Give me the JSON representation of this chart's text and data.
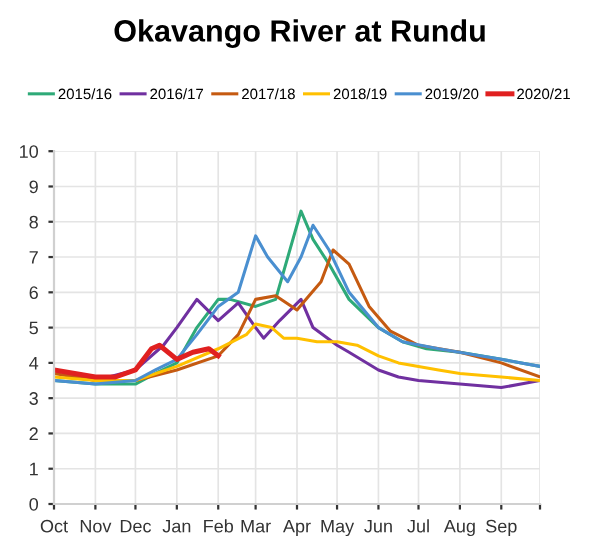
{
  "chart_data": {
    "type": "line",
    "title": "Okavango River at Rundu",
    "xlim": [
      "2020-10-01",
      "2021-09-30"
    ],
    "xticks": [
      {
        "value": "2020-10-01",
        "label": "Oct"
      },
      {
        "value": "2020-11-01",
        "label": "Nov"
      },
      {
        "value": "2020-12-01",
        "label": "Dec"
      },
      {
        "value": "2021-01-01",
        "label": "Jan"
      },
      {
        "value": "2021-02-01",
        "label": "Feb"
      },
      {
        "value": "2021-03-01",
        "label": "Mar"
      },
      {
        "value": "2021-04-01",
        "label": "Apr"
      },
      {
        "value": "2021-05-01",
        "label": "May"
      },
      {
        "value": "2021-06-01",
        "label": "Jun"
      },
      {
        "value": "2021-07-01",
        "label": "Jul"
      },
      {
        "value": "2021-08-01",
        "label": "Aug"
      },
      {
        "value": "2021-09-01",
        "label": "Sep"
      },
      {
        "value": "2021-09-30",
        "label": null
      }
    ],
    "ylim": [
      0,
      10
    ],
    "yticks": [
      0,
      1,
      2,
      3,
      4,
      5,
      6,
      7,
      8,
      9,
      10
    ],
    "grid": true,
    "legend": "top",
    "marker": "none",
    "line_style": "solid",
    "series": [
      {
        "name": "2015/16",
        "color": "#2eaa78",
        "x": [
          "2020-10-01",
          "2020-11-01",
          "2020-12-01",
          "2020-12-16",
          "2021-01-01",
          "2021-01-16",
          "2021-02-01",
          "2021-02-10",
          "2021-03-01",
          "2021-03-16",
          "2021-04-04",
          "2021-04-13",
          "2021-04-25",
          "2021-05-10",
          "2021-06-01",
          "2021-06-19",
          "2021-07-07",
          "2021-08-01",
          "2021-09-01",
          "2021-09-16",
          "2021-09-30"
        ],
        "values": [
          3.5,
          3.4,
          3.4,
          3.7,
          4.0,
          5.0,
          5.8,
          5.8,
          5.6,
          5.8,
          8.3,
          7.5,
          6.8,
          5.8,
          5.0,
          4.6,
          4.4,
          4.3,
          4.1,
          4.0,
          3.9
        ]
      },
      {
        "name": "2016/17",
        "color": "#7030a0",
        "x": [
          "2020-10-01",
          "2020-11-01",
          "2020-12-01",
          "2020-12-22",
          "2021-01-01",
          "2021-01-16",
          "2021-02-01",
          "2021-02-16",
          "2021-03-01",
          "2021-03-07",
          "2021-03-19",
          "2021-04-04",
          "2021-04-13",
          "2021-05-01",
          "2021-05-10",
          "2021-06-01",
          "2021-06-16",
          "2021-07-01",
          "2021-08-01",
          "2021-09-01",
          "2021-09-30"
        ],
        "values": [
          3.8,
          3.5,
          3.8,
          4.5,
          5.0,
          5.8,
          5.2,
          5.7,
          5.0,
          4.7,
          5.2,
          5.8,
          5.0,
          4.5,
          4.3,
          3.8,
          3.6,
          3.5,
          3.4,
          3.3,
          3.5
        ]
      },
      {
        "name": "2017/18",
        "color": "#c55a11",
        "x": [
          "2020-10-01",
          "2020-11-01",
          "2020-12-01",
          "2021-01-01",
          "2021-02-01",
          "2021-02-16",
          "2021-03-01",
          "2021-03-16",
          "2021-04-01",
          "2021-04-10",
          "2021-04-19",
          "2021-04-28",
          "2021-05-10",
          "2021-05-25",
          "2021-06-10",
          "2021-07-01",
          "2021-08-01",
          "2021-09-01",
          "2021-09-30"
        ],
        "values": [
          3.7,
          3.5,
          3.5,
          3.8,
          4.2,
          4.8,
          5.8,
          5.9,
          5.5,
          5.9,
          6.3,
          7.2,
          6.8,
          5.6,
          4.9,
          4.5,
          4.3,
          4.0,
          3.6
        ]
      },
      {
        "name": "2018/19",
        "color": "#ffc000",
        "x": [
          "2020-10-01",
          "2020-11-01",
          "2020-12-01",
          "2021-01-01",
          "2021-02-01",
          "2021-02-22",
          "2021-03-01",
          "2021-03-13",
          "2021-03-22",
          "2021-04-01",
          "2021-04-16",
          "2021-05-01",
          "2021-05-16",
          "2021-06-01",
          "2021-06-16",
          "2021-07-16",
          "2021-08-01",
          "2021-09-01",
          "2021-09-30"
        ],
        "values": [
          3.6,
          3.5,
          3.5,
          3.9,
          4.4,
          4.8,
          5.1,
          5.0,
          4.7,
          4.7,
          4.6,
          4.6,
          4.5,
          4.2,
          4.0,
          3.8,
          3.7,
          3.6,
          3.5
        ]
      },
      {
        "name": "2019/20",
        "color": "#4a8fd0",
        "x": [
          "2020-10-01",
          "2020-11-01",
          "2020-12-01",
          "2020-12-16",
          "2021-01-01",
          "2021-01-16",
          "2021-02-01",
          "2021-02-16",
          "2021-03-01",
          "2021-03-10",
          "2021-03-25",
          "2021-04-04",
          "2021-04-13",
          "2021-04-25",
          "2021-05-10",
          "2021-06-01",
          "2021-06-19",
          "2021-07-16",
          "2021-08-16",
          "2021-09-01",
          "2021-09-16",
          "2021-09-30"
        ],
        "values": [
          3.5,
          3.4,
          3.5,
          3.8,
          4.1,
          4.8,
          5.6,
          6.0,
          7.6,
          7.0,
          6.3,
          7.0,
          7.9,
          7.2,
          6.0,
          5.0,
          4.6,
          4.4,
          4.2,
          4.1,
          4.0,
          3.9
        ]
      },
      {
        "name": "2020/21",
        "color": "#e02020",
        "x": [
          "2020-10-01",
          "2020-11-01",
          "2020-11-16",
          "2020-12-01",
          "2020-12-13",
          "2020-12-19",
          "2021-01-01",
          "2021-01-13",
          "2021-01-25",
          "2021-02-01"
        ],
        "values": [
          3.8,
          3.6,
          3.6,
          3.8,
          4.4,
          4.5,
          4.1,
          4.3,
          4.4,
          4.2
        ]
      }
    ]
  }
}
